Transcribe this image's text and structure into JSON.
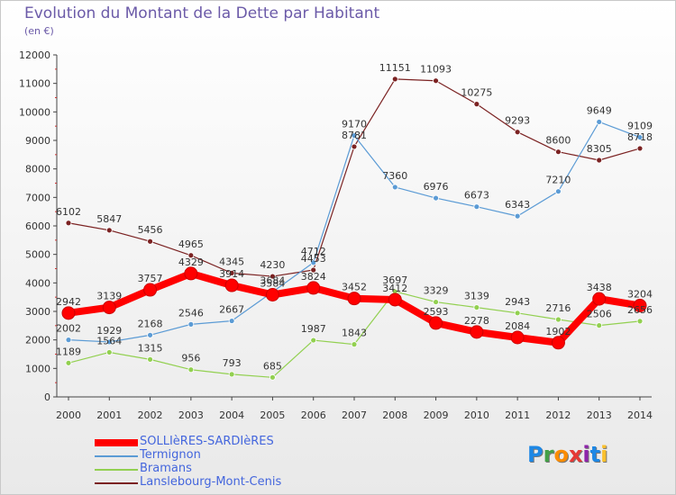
{
  "title": "Evolution du Montant de la Dette par Habitant",
  "unit": "(en €)",
  "logo": {
    "text": "Proxiti",
    "letters": [
      {
        "ch": "P",
        "color": "#1e88e5"
      },
      {
        "ch": "r",
        "color": "#43a047"
      },
      {
        "ch": "o",
        "color": "#fb8c00"
      },
      {
        "ch": "x",
        "color": "#e53935"
      },
      {
        "ch": "i",
        "color": "#8e24aa"
      },
      {
        "ch": "t",
        "color": "#1e88e5"
      },
      {
        "ch": "i",
        "color": "#fbc02d"
      }
    ]
  },
  "chart_data": {
    "type": "line",
    "title": "Evolution du Montant de la Dette par Habitant",
    "subtitle": "(en €)",
    "xlabel": "",
    "ylabel": "",
    "ylim": [
      0,
      12000
    ],
    "yticks": [
      0,
      1000,
      2000,
      3000,
      4000,
      5000,
      6000,
      7000,
      8000,
      9000,
      10000,
      11000,
      12000
    ],
    "grid": false,
    "legend_position": "bottom-left",
    "categories": [
      "2000",
      "2001",
      "2002",
      "2003",
      "2004",
      "2005",
      "2006",
      "2007",
      "2008",
      "2009",
      "2010",
      "2011",
      "2012",
      "2013",
      "2014"
    ],
    "series": [
      {
        "name": "Lanslebourg-Mont-Cenis",
        "color": "#7b2222",
        "values": [
          6102,
          5847,
          5456,
          4965,
          4345,
          4230,
          4453,
          8781,
          11151,
          11093,
          10275,
          9293,
          8600,
          8305,
          8718
        ]
      },
      {
        "name": "Termignon",
        "color": "#5b9bd5",
        "values": [
          2002,
          1929,
          2168,
          2546,
          2667,
          3684,
          4712,
          9170,
          7360,
          6976,
          6673,
          6343,
          7210,
          9649,
          9109
        ]
      },
      {
        "name": "Bramans",
        "color": "#92d050",
        "values": [
          1189,
          1564,
          1315,
          956,
          793,
          685,
          1987,
          1843,
          3697,
          3329,
          3139,
          2943,
          2716,
          2506,
          2656
        ]
      },
      {
        "name": "SOLLIèRES-SARDIèRES",
        "color": "#ff0000",
        "values": [
          2942,
          3139,
          3757,
          4329,
          3914,
          3584,
          3824,
          3452,
          3412,
          2593,
          2278,
          2084,
          1902,
          3438,
          3204
        ]
      }
    ],
    "legend_order": [
      "SOLLIèRES-SARDIèRES",
      "Termignon",
      "Bramans",
      "Lanslebourg-Mont-Cenis"
    ]
  }
}
